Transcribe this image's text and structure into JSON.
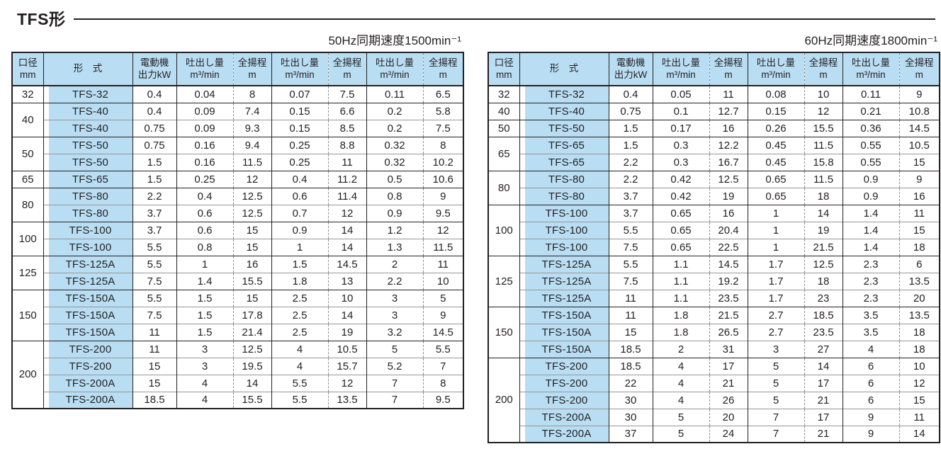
{
  "page": {
    "title": "TFS形"
  },
  "columns": {
    "bore": "口径\nmm",
    "model": "形　式",
    "motor": "電動機\n出力kW",
    "discharge": "吐出し量\nm³/min",
    "head": "全揚程\nm"
  },
  "tables": [
    {
      "caption": "50Hz同期速度1500min⁻¹",
      "rows": [
        {
          "bore": "32",
          "span": 1,
          "model": "TFS-32",
          "vals": [
            "0.4",
            "0.04",
            "8",
            "0.07",
            "7.5",
            "0.11",
            "6.5"
          ]
        },
        {
          "bore": "40",
          "span": 2,
          "model": "TFS-40",
          "vals": [
            "0.4",
            "0.09",
            "7.4",
            "0.15",
            "6.6",
            "0.2",
            "5.8"
          ]
        },
        {
          "model": "TFS-40",
          "vals": [
            "0.75",
            "0.09",
            "9.3",
            "0.15",
            "8.5",
            "0.2",
            "7.5"
          ]
        },
        {
          "bore": "50",
          "span": 2,
          "model": "TFS-50",
          "vals": [
            "0.75",
            "0.16",
            "9.4",
            "0.25",
            "8.8",
            "0.32",
            "8"
          ]
        },
        {
          "model": "TFS-50",
          "vals": [
            "1.5",
            "0.16",
            "11.5",
            "0.25",
            "11",
            "0.32",
            "10.2"
          ]
        },
        {
          "bore": "65",
          "span": 1,
          "model": "TFS-65",
          "vals": [
            "1.5",
            "0.25",
            "12",
            "0.4",
            "11.2",
            "0.5",
            "10.6"
          ]
        },
        {
          "bore": "80",
          "span": 2,
          "model": "TFS-80",
          "vals": [
            "2.2",
            "0.4",
            "12.5",
            "0.6",
            "11.4",
            "0.8",
            "9"
          ]
        },
        {
          "model": "TFS-80",
          "vals": [
            "3.7",
            "0.6",
            "12.5",
            "0.7",
            "12",
            "0.9",
            "9.5"
          ]
        },
        {
          "bore": "100",
          "span": 2,
          "model": "TFS-100",
          "vals": [
            "3.7",
            "0.6",
            "15",
            "0.9",
            "14",
            "1.2",
            "12"
          ]
        },
        {
          "model": "TFS-100",
          "vals": [
            "5.5",
            "0.8",
            "15",
            "1",
            "14",
            "1.3",
            "11.5"
          ]
        },
        {
          "bore": "125",
          "span": 2,
          "model": "TFS-125A",
          "vals": [
            "5.5",
            "1",
            "16",
            "1.5",
            "14.5",
            "2",
            "11"
          ]
        },
        {
          "model": "TFS-125A",
          "vals": [
            "7.5",
            "1.4",
            "15.5",
            "1.8",
            "13",
            "2.2",
            "10"
          ]
        },
        {
          "bore": "150",
          "span": 3,
          "model": "TFS-150A",
          "vals": [
            "5.5",
            "1.5",
            "15",
            "2.5",
            "10",
            "3",
            "5"
          ]
        },
        {
          "model": "TFS-150A",
          "vals": [
            "7.5",
            "1.5",
            "17.8",
            "2.5",
            "14",
            "3",
            "9"
          ]
        },
        {
          "model": "TFS-150A",
          "vals": [
            "11",
            "1.5",
            "21.4",
            "2.5",
            "19",
            "3.2",
            "14.5"
          ]
        },
        {
          "bore": "200",
          "span": 4,
          "model": "TFS-200",
          "vals": [
            "11",
            "3",
            "12.5",
            "4",
            "10.5",
            "5",
            "5.5"
          ]
        },
        {
          "model": "TFS-200",
          "vals": [
            "15",
            "3",
            "19.5",
            "4",
            "15.7",
            "5.2",
            "7"
          ]
        },
        {
          "model": "TFS-200A",
          "vals": [
            "15",
            "4",
            "14",
            "5.5",
            "12",
            "7",
            "8"
          ]
        },
        {
          "model": "TFS-200A",
          "vals": [
            "18.5",
            "4",
            "15.5",
            "5.5",
            "13.5",
            "7",
            "9.5"
          ]
        }
      ]
    },
    {
      "caption": "60Hz同期速度1800min⁻¹",
      "rows": [
        {
          "bore": "32",
          "span": 1,
          "model": "TFS-32",
          "vals": [
            "0.4",
            "0.05",
            "11",
            "0.08",
            "10",
            "0.11",
            "9"
          ]
        },
        {
          "bore": "40",
          "span": 1,
          "model": "TFS-40",
          "vals": [
            "0.75",
            "0.1",
            "12.7",
            "0.15",
            "12",
            "0.21",
            "10.8"
          ]
        },
        {
          "bore": "50",
          "span": 1,
          "model": "TFS-50",
          "vals": [
            "1.5",
            "0.17",
            "16",
            "0.26",
            "15.5",
            "0.36",
            "14.5"
          ]
        },
        {
          "bore": "65",
          "span": 2,
          "model": "TFS-65",
          "vals": [
            "1.5",
            "0.3",
            "12.2",
            "0.45",
            "11.5",
            "0.55",
            "10.5"
          ]
        },
        {
          "model": "TFS-65",
          "vals": [
            "2.2",
            "0.3",
            "16.7",
            "0.45",
            "15.8",
            "0.55",
            "15"
          ]
        },
        {
          "bore": "80",
          "span": 2,
          "model": "TFS-80",
          "vals": [
            "2.2",
            "0.42",
            "12.5",
            "0.65",
            "11.5",
            "0.9",
            "9"
          ]
        },
        {
          "model": "TFS-80",
          "vals": [
            "3.7",
            "0.42",
            "19",
            "0.65",
            "18",
            "0.9",
            "16"
          ]
        },
        {
          "bore": "100",
          "span": 3,
          "model": "TFS-100",
          "vals": [
            "3.7",
            "0.65",
            "16",
            "1",
            "14",
            "1.4",
            "11"
          ]
        },
        {
          "model": "TFS-100",
          "vals": [
            "5.5",
            "0.65",
            "20.4",
            "1",
            "19",
            "1.4",
            "15"
          ]
        },
        {
          "model": "TFS-100",
          "vals": [
            "7.5",
            "0.65",
            "22.5",
            "1",
            "21.5",
            "1.4",
            "18"
          ]
        },
        {
          "bore": "125",
          "span": 3,
          "model": "TFS-125A",
          "vals": [
            "5.5",
            "1.1",
            "14.5",
            "1.7",
            "12.5",
            "2.3",
            "6"
          ]
        },
        {
          "model": "TFS-125A",
          "vals": [
            "7.5",
            "1.1",
            "19.2",
            "1.7",
            "18",
            "2.3",
            "13.5"
          ]
        },
        {
          "model": "TFS-125A",
          "vals": [
            "11",
            "1.1",
            "23.5",
            "1.7",
            "23",
            "2.3",
            "20"
          ]
        },
        {
          "bore": "150",
          "span": 3,
          "model": "TFS-150A",
          "vals": [
            "11",
            "1.8",
            "21.5",
            "2.7",
            "18.5",
            "3.5",
            "13.5"
          ]
        },
        {
          "model": "TFS-150A",
          "vals": [
            "15",
            "1.8",
            "26.5",
            "2.7",
            "23.5",
            "3.5",
            "18"
          ]
        },
        {
          "model": "TFS-150A",
          "vals": [
            "18.5",
            "2",
            "31",
            "3",
            "27",
            "4",
            "18"
          ]
        },
        {
          "bore": "200",
          "span": 5,
          "model": "TFS-200",
          "vals": [
            "18.5",
            "4",
            "17",
            "5",
            "14",
            "6",
            "10"
          ]
        },
        {
          "model": "TFS-200",
          "vals": [
            "22",
            "4",
            "21",
            "5",
            "17",
            "6",
            "12"
          ]
        },
        {
          "model": "TFS-200",
          "vals": [
            "30",
            "4",
            "26",
            "5",
            "21",
            "6",
            "15"
          ]
        },
        {
          "model": "TFS-200A",
          "vals": [
            "30",
            "5",
            "20",
            "7",
            "17",
            "9",
            "11"
          ]
        },
        {
          "model": "TFS-200A",
          "vals": [
            "37",
            "5",
            "24",
            "7",
            "21",
            "9",
            "14"
          ]
        }
      ]
    }
  ]
}
